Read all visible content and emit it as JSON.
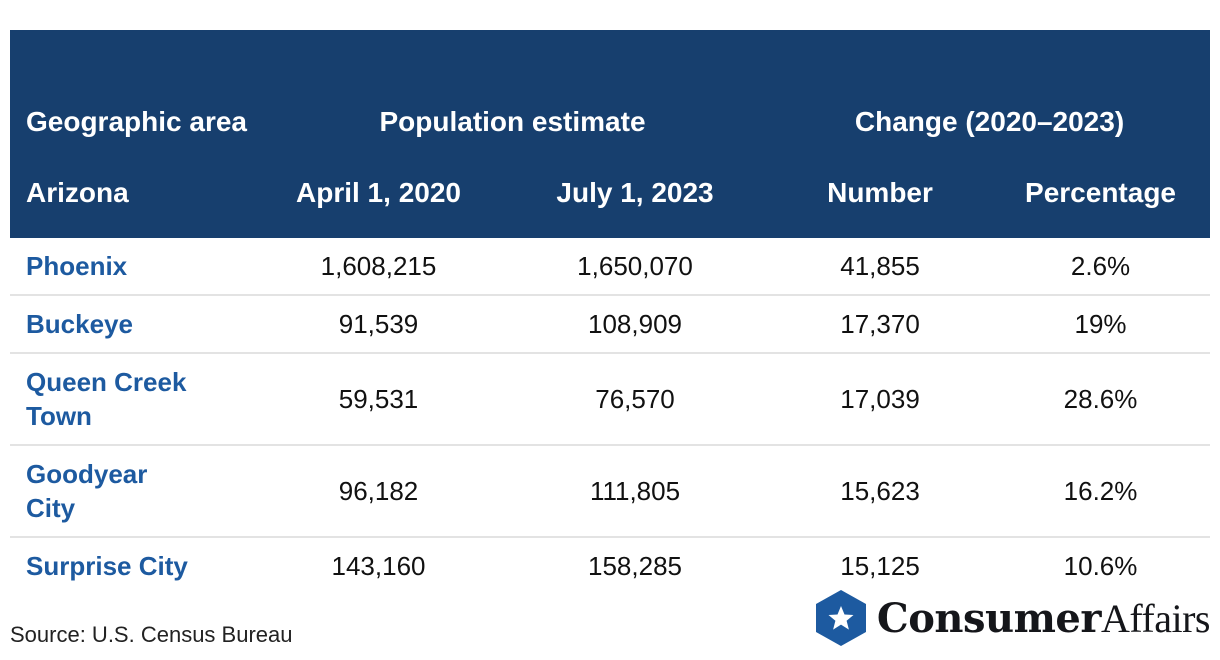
{
  "chart_data": {
    "type": "table",
    "header": {
      "area_top": "Geographic area",
      "population_group": "Population estimate",
      "change_group": "Change (2020–2023)",
      "area_sub": "Arizona",
      "col_2020": "April 1, 2020",
      "col_2023": "July 1, 2023",
      "col_number": "Number",
      "col_percent": "Percentage"
    },
    "rows": [
      {
        "area": "Phoenix",
        "pop_2020": "1,608,215",
        "pop_2023": "1,650,070",
        "change_number": "41,855",
        "change_percent": "2.6%"
      },
      {
        "area": "Buckeye",
        "pop_2020": "91,539",
        "pop_2023": "108,909",
        "change_number": "17,370",
        "change_percent": "19%"
      },
      {
        "area": "Queen Creek Town",
        "pop_2020": "59,531",
        "pop_2023": "76,570",
        "change_number": "17,039",
        "change_percent": "28.6%"
      },
      {
        "area": "Goodyear City",
        "pop_2020": "96,182",
        "pop_2023": "111,805",
        "change_number": "15,623",
        "change_percent": "16.2%"
      },
      {
        "area": "Surprise City",
        "pop_2020": "143,160",
        "pop_2023": "158,285",
        "change_number": "15,125",
        "change_percent": "10.6%"
      }
    ]
  },
  "footer": {
    "source": "Source: U.S. Census Bureau",
    "logo_strong": "Consumer",
    "logo_light": "Affairs",
    "logo_icon": "star-badge-icon"
  },
  "colors": {
    "header_bg": "#173f6e",
    "area_text": "#1d5aa0",
    "divider": "#e3e3e3",
    "logo_hex": "#1d5aa0"
  }
}
